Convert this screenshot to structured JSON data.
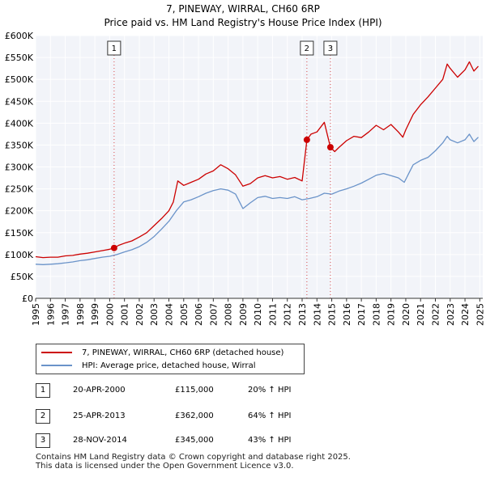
{
  "chart_data": {
    "type": "line",
    "title": "7, PINEWAY, WIRRAL, CH60 6RP",
    "subtitle": "Price paid vs. HM Land Registry's House Price Index (HPI)",
    "xlim": [
      1995,
      2025.2
    ],
    "ylim": [
      0,
      600000
    ],
    "x_ticks": [
      1995,
      1996,
      1997,
      1998,
      1999,
      2000,
      2001,
      2002,
      2003,
      2004,
      2005,
      2006,
      2007,
      2008,
      2009,
      2010,
      2011,
      2012,
      2013,
      2014,
      2015,
      2016,
      2017,
      2018,
      2019,
      2020,
      2021,
      2022,
      2023,
      2024,
      2025
    ],
    "y_ticks": [
      {
        "value": 0,
        "label": "£0"
      },
      {
        "value": 50000,
        "label": "£50K"
      },
      {
        "value": 100000,
        "label": "£100K"
      },
      {
        "value": 150000,
        "label": "£150K"
      },
      {
        "value": 200000,
        "label": "£200K"
      },
      {
        "value": 250000,
        "label": "£250K"
      },
      {
        "value": 300000,
        "label": "£300K"
      },
      {
        "value": 350000,
        "label": "£350K"
      },
      {
        "value": 400000,
        "label": "£400K"
      },
      {
        "value": 450000,
        "label": "£450K"
      },
      {
        "value": 500000,
        "label": "£500K"
      },
      {
        "value": 550000,
        "label": "£550K"
      },
      {
        "value": 600000,
        "label": "£600K"
      }
    ],
    "series": [
      {
        "name": "7, PINEWAY, WIRRAL, CH60 6RP (detached house)",
        "color": "#cc0000",
        "points": [
          [
            1995,
            95000
          ],
          [
            1995.5,
            93000
          ],
          [
            1996,
            94000
          ],
          [
            1996.5,
            94000
          ],
          [
            1997,
            97000
          ],
          [
            1997.5,
            98000
          ],
          [
            1998,
            101000
          ],
          [
            1998.5,
            103000
          ],
          [
            1999,
            106000
          ],
          [
            1999.5,
            109000
          ],
          [
            2000,
            112000
          ],
          [
            2000.3,
            115000
          ],
          [
            2000.6,
            121000
          ],
          [
            2001,
            126000
          ],
          [
            2001.5,
            131000
          ],
          [
            2002,
            140000
          ],
          [
            2002.5,
            150000
          ],
          [
            2003,
            166000
          ],
          [
            2003.5,
            182000
          ],
          [
            2004,
            200000
          ],
          [
            2004.3,
            220000
          ],
          [
            2004.6,
            268000
          ],
          [
            2005,
            258000
          ],
          [
            2005.5,
            265000
          ],
          [
            2006,
            272000
          ],
          [
            2006.5,
            284000
          ],
          [
            2007,
            291000
          ],
          [
            2007.5,
            305000
          ],
          [
            2008,
            296000
          ],
          [
            2008.5,
            282000
          ],
          [
            2009,
            256000
          ],
          [
            2009.5,
            262000
          ],
          [
            2010,
            275000
          ],
          [
            2010.5,
            280000
          ],
          [
            2011,
            275000
          ],
          [
            2011.5,
            278000
          ],
          [
            2012,
            272000
          ],
          [
            2012.5,
            276000
          ],
          [
            2013,
            268000
          ],
          [
            2013.32,
            362000
          ],
          [
            2013.6,
            375000
          ],
          [
            2014,
            380000
          ],
          [
            2014.5,
            402000
          ],
          [
            2014.91,
            345000
          ],
          [
            2015.2,
            335000
          ],
          [
            2015.5,
            345000
          ],
          [
            2016,
            360000
          ],
          [
            2016.5,
            370000
          ],
          [
            2017,
            367000
          ],
          [
            2017.5,
            380000
          ],
          [
            2018,
            395000
          ],
          [
            2018.5,
            385000
          ],
          [
            2019,
            397000
          ],
          [
            2019.5,
            380000
          ],
          [
            2019.8,
            368000
          ],
          [
            2020,
            385000
          ],
          [
            2020.5,
            420000
          ],
          [
            2021,
            442000
          ],
          [
            2021.5,
            460000
          ],
          [
            2022,
            480000
          ],
          [
            2022.5,
            500000
          ],
          [
            2022.8,
            535000
          ],
          [
            2023,
            525000
          ],
          [
            2023.5,
            505000
          ],
          [
            2024,
            522000
          ],
          [
            2024.3,
            540000
          ],
          [
            2024.6,
            519000
          ],
          [
            2024.9,
            530000
          ]
        ]
      },
      {
        "name": "HPI: Average price, detached house, Wirral",
        "color": "#6a93c9",
        "points": [
          [
            1995,
            78000
          ],
          [
            1995.5,
            77000
          ],
          [
            1996,
            78000
          ],
          [
            1996.5,
            79000
          ],
          [
            1997,
            81000
          ],
          [
            1997.5,
            83000
          ],
          [
            1998,
            86000
          ],
          [
            1998.5,
            88000
          ],
          [
            1999,
            91000
          ],
          [
            1999.5,
            94000
          ],
          [
            2000,
            96000
          ],
          [
            2000.5,
            100000
          ],
          [
            2001,
            106000
          ],
          [
            2001.5,
            111000
          ],
          [
            2002,
            118000
          ],
          [
            2002.5,
            128000
          ],
          [
            2003,
            141000
          ],
          [
            2003.5,
            158000
          ],
          [
            2004,
            176000
          ],
          [
            2004.5,
            200000
          ],
          [
            2005,
            220000
          ],
          [
            2005.5,
            225000
          ],
          [
            2006,
            232000
          ],
          [
            2006.5,
            240000
          ],
          [
            2007,
            246000
          ],
          [
            2007.5,
            250000
          ],
          [
            2008,
            247000
          ],
          [
            2008.5,
            238000
          ],
          [
            2009,
            205000
          ],
          [
            2009.5,
            218000
          ],
          [
            2010,
            230000
          ],
          [
            2010.5,
            233000
          ],
          [
            2011,
            228000
          ],
          [
            2011.5,
            230000
          ],
          [
            2012,
            228000
          ],
          [
            2012.5,
            232000
          ],
          [
            2013,
            225000
          ],
          [
            2013.5,
            228000
          ],
          [
            2014,
            232000
          ],
          [
            2014.5,
            240000
          ],
          [
            2015,
            238000
          ],
          [
            2015.5,
            245000
          ],
          [
            2016,
            250000
          ],
          [
            2016.5,
            256000
          ],
          [
            2017,
            263000
          ],
          [
            2017.5,
            272000
          ],
          [
            2018,
            281000
          ],
          [
            2018.5,
            285000
          ],
          [
            2019,
            280000
          ],
          [
            2019.5,
            275000
          ],
          [
            2019.9,
            265000
          ],
          [
            2020.2,
            285000
          ],
          [
            2020.5,
            305000
          ],
          [
            2021,
            315000
          ],
          [
            2021.5,
            322000
          ],
          [
            2022,
            337000
          ],
          [
            2022.5,
            355000
          ],
          [
            2022.8,
            370000
          ],
          [
            2023,
            362000
          ],
          [
            2023.5,
            355000
          ],
          [
            2024,
            362000
          ],
          [
            2024.3,
            375000
          ],
          [
            2024.6,
            358000
          ],
          [
            2024.9,
            368000
          ]
        ]
      }
    ],
    "sales": [
      {
        "label": "1",
        "x": 2000.3,
        "value": 115000
      },
      {
        "label": "2",
        "x": 2013.32,
        "value": 362000
      },
      {
        "label": "3",
        "x": 2014.91,
        "value": 345000
      }
    ]
  },
  "legend": {
    "property": "7, PINEWAY, WIRRAL, CH60 6RP (detached house)",
    "hpi": "HPI: Average price, detached house, Wirral"
  },
  "sales_table": [
    {
      "num": "1",
      "date": "20-APR-2000",
      "price": "£115,000",
      "hpi": "20% ↑ HPI"
    },
    {
      "num": "2",
      "date": "25-APR-2013",
      "price": "£362,000",
      "hpi": "64% ↑ HPI"
    },
    {
      "num": "3",
      "date": "28-NOV-2014",
      "price": "£345,000",
      "hpi": "43% ↑ HPI"
    }
  ],
  "footer": {
    "line1": "Contains HM Land Registry data © Crown copyright and database right 2025.",
    "line2": "This data is licensed under the Open Government Licence v3.0."
  }
}
